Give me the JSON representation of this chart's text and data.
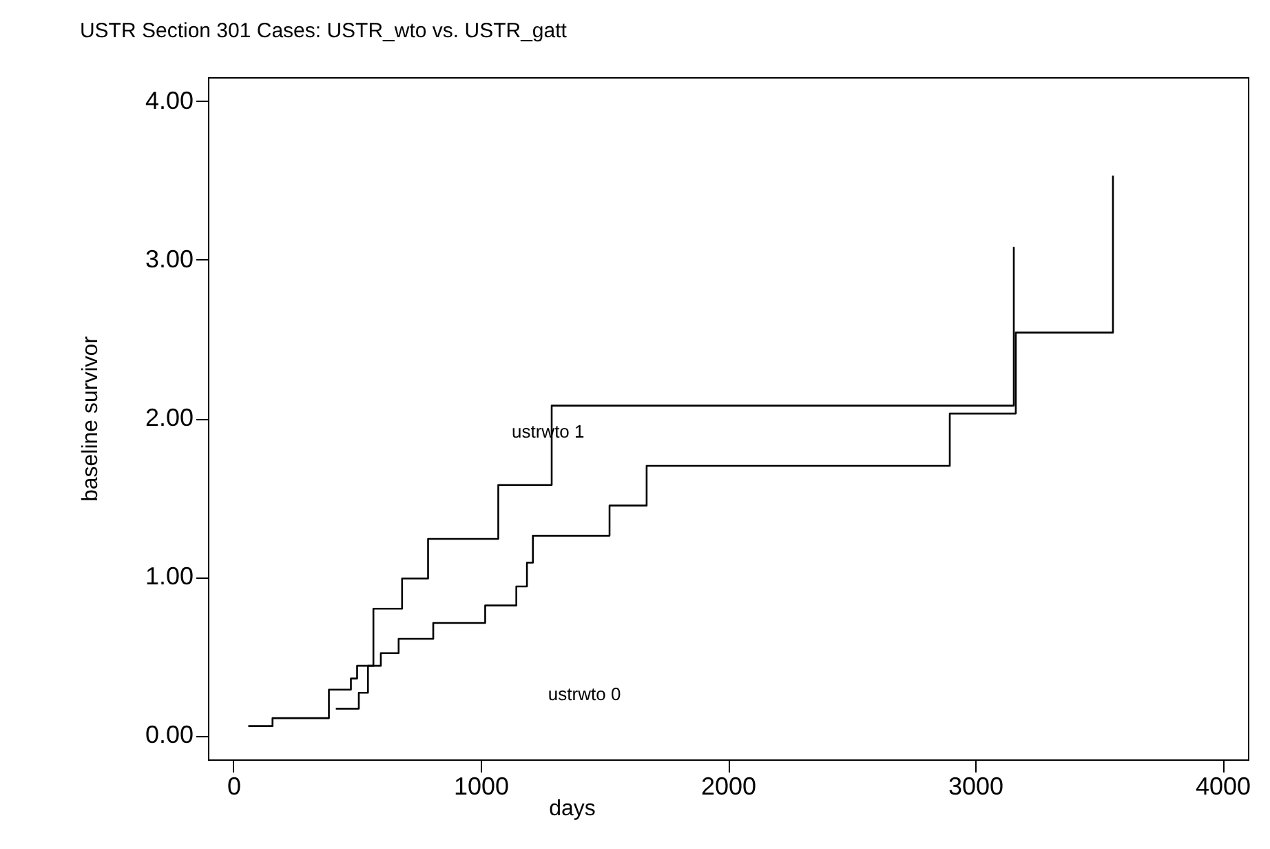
{
  "chart_data": {
    "type": "step",
    "title": "USTR Section 301 Cases: USTR_wto vs. USTR_gatt",
    "xlabel": "days",
    "ylabel": "baseline survivor",
    "series": [
      {
        "color": "#000000",
        "x": [
          60,
          158,
          386,
          475,
          500,
          566,
          682,
          787,
          1071,
          1287,
          3156
        ],
        "values": [
          0.06,
          0.11,
          0.29,
          0.36,
          0.44,
          0.8,
          0.99,
          1.24,
          1.58,
          2.08,
          3.08
        ]
      },
      {
        "color": "#000000",
        "x": [
          414,
          507,
          544,
          596,
          668,
          808,
          1018,
          1144,
          1187,
          1211,
          1521,
          1671,
          2897,
          3164,
          3557
        ],
        "values": [
          0.17,
          0.27,
          0.44,
          0.52,
          0.61,
          0.71,
          0.82,
          0.94,
          1.09,
          1.26,
          1.45,
          1.7,
          2.03,
          2.54,
          3.53
        ]
      }
    ],
    "annotations": [
      "ustrwto 1",
      "ustrwto 0"
    ],
    "xlim": [
      -103,
      4103
    ],
    "xticks": [
      0,
      1000,
      2000,
      3000,
      4000
    ],
    "ylim": [
      -0.15,
      4.15
    ],
    "yticks": [
      {
        "value": 0,
        "label": "0.00"
      },
      {
        "value": 1,
        "label": "1.00"
      },
      {
        "value": 2,
        "label": "2.00"
      },
      {
        "value": 3,
        "label": "3.00"
      },
      {
        "value": 4,
        "label": "4.00"
      }
    ],
    "line_style": "solid"
  }
}
